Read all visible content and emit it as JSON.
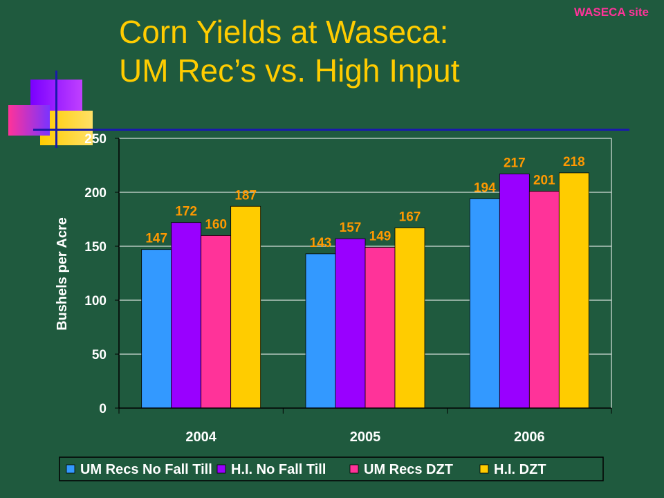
{
  "header": {
    "site_tag": "WASECA site",
    "title_line1": "Corn Yields at Waseca:",
    "title_line2": "UM Rec’s vs. High Input"
  },
  "colors": {
    "background": "#1f5a3e",
    "title": "#ffcc00",
    "site_tag": "#ff3399",
    "data_label": "#ff9900"
  },
  "chart_data": {
    "type": "bar",
    "categories": [
      "2004",
      "2005",
      "2006"
    ],
    "series": [
      {
        "name": "UM Recs No Fall Till",
        "color": "#3399ff",
        "values": [
          147,
          143,
          194
        ]
      },
      {
        "name": "H.I. No Fall Till",
        "color": "#9900ff",
        "values": [
          172,
          157,
          217
        ]
      },
      {
        "name": "UM Recs DZT",
        "color": "#ff3399",
        "values": [
          160,
          149,
          201
        ]
      },
      {
        "name": "H.I. DZT",
        "color": "#ffcc00",
        "values": [
          187,
          167,
          218
        ]
      }
    ],
    "ylabel": "Bushels per Acre",
    "ylim": [
      0,
      250
    ],
    "yticks": [
      0,
      50,
      100,
      150,
      200,
      250
    ],
    "grid": true,
    "legend": "bottom"
  }
}
